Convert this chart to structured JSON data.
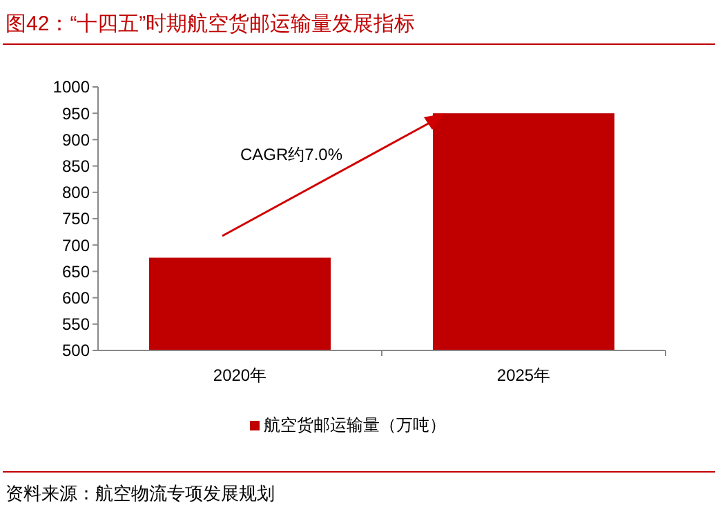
{
  "chart_data": {
    "type": "bar",
    "title": "图42：“十四五”时期航空货邮运输量发展指标",
    "categories": [
      "2020年",
      "2025年"
    ],
    "series": [
      {
        "name": "航空货邮运输量（万吨）",
        "color": "#c00000",
        "values": [
          676,
          950
        ]
      }
    ],
    "ylim": [
      500,
      1000
    ],
    "yticks": [
      500,
      550,
      600,
      650,
      700,
      750,
      800,
      850,
      900,
      950,
      1000
    ],
    "legend": "bottom",
    "grid": false,
    "annotations": [
      "CAGR约7.0%",
      "资料来源：航空物流专项发展规划"
    ]
  }
}
